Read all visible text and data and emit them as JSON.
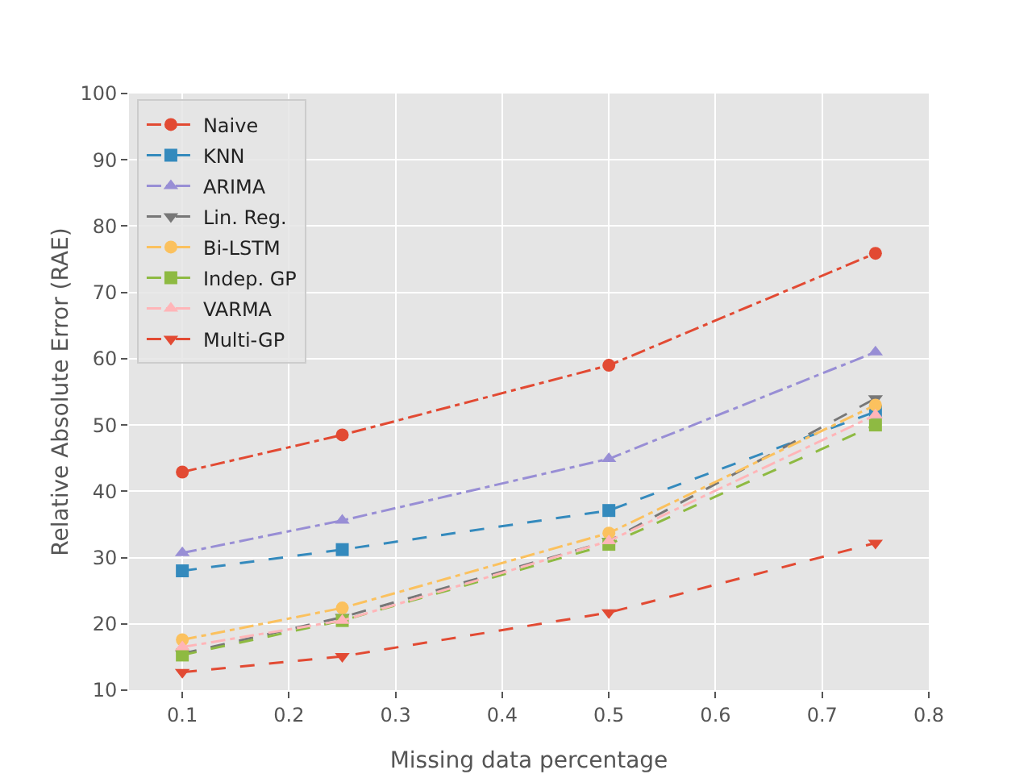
{
  "chart_data": {
    "type": "line",
    "xlabel": "Missing data percentage",
    "ylabel": "Relative Absolute Error (RAE)",
    "x": [
      0.1,
      0.25,
      0.5,
      0.75
    ],
    "xlim": [
      0.05,
      0.8
    ],
    "xticks": [
      0.1,
      0.2,
      0.3,
      0.4,
      0.5,
      0.6,
      0.7,
      0.8
    ],
    "ylim": [
      10,
      100
    ],
    "yticks": [
      10,
      20,
      30,
      40,
      50,
      60,
      70,
      80,
      90,
      100
    ],
    "grid": true,
    "legend": "top left",
    "series": [
      {
        "name": "Naive",
        "color": "#e24a33",
        "marker": "circle",
        "line_style": "dashdot",
        "values": [
          42.9,
          48.5,
          59.0,
          75.9
        ]
      },
      {
        "name": "KNN",
        "color": "#348abd",
        "marker": "square",
        "line_style": "dashed",
        "values": [
          28.0,
          31.2,
          37.1,
          52.0
        ]
      },
      {
        "name": "ARIMA",
        "color": "#988ed5",
        "marker": "triangle",
        "line_style": "dashdot",
        "values": [
          30.7,
          35.6,
          44.9,
          61.0
        ]
      },
      {
        "name": "Lin. Reg.",
        "color": "#777777",
        "marker": "triangle-down",
        "line_style": "dashed",
        "values": [
          15.5,
          21.0,
          32.5,
          54.0
        ]
      },
      {
        "name": "Bi-LSTM",
        "color": "#fbc15e",
        "marker": "circle",
        "line_style": "dashdot",
        "values": [
          17.6,
          22.4,
          33.7,
          53.0
        ]
      },
      {
        "name": "Indep. GP",
        "color": "#8eba42",
        "marker": "square",
        "line_style": "dashed",
        "values": [
          15.3,
          20.5,
          32.0,
          50.0
        ]
      },
      {
        "name": "VARMA",
        "color": "#ffb5b8",
        "marker": "triangle",
        "line_style": "dashdot",
        "values": [
          16.5,
          20.5,
          32.5,
          51.5
        ]
      },
      {
        "name": "Multi-GP",
        "color": "#e24a33",
        "marker": "triangle-down",
        "line_style": "dashed",
        "values": [
          12.7,
          15.1,
          21.7,
          32.2
        ]
      }
    ]
  }
}
